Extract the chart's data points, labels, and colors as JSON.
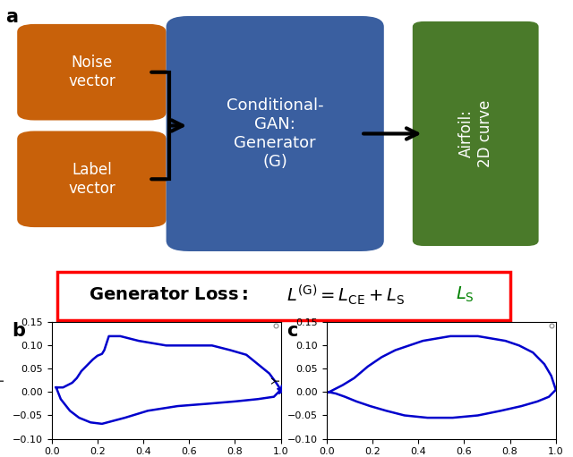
{
  "orange_color": "#C8610A",
  "blue_color": "#3A5FA0",
  "green_color": "#4A7A2A",
  "line_color": "#0000CC",
  "airfoil_b_x": [
    0.02,
    0.05,
    0.09,
    0.11,
    0.13,
    0.15,
    0.18,
    0.2,
    0.22,
    0.23,
    0.25,
    0.3,
    0.38,
    0.5,
    0.62,
    0.7,
    0.78,
    0.85,
    0.9,
    0.95,
    0.98,
    1.0,
    0.97,
    0.9,
    0.8,
    0.68,
    0.55,
    0.42,
    0.32,
    0.22,
    0.17,
    0.12,
    0.08,
    0.04,
    0.02
  ],
  "airfoil_b_y": [
    0.01,
    0.01,
    0.02,
    0.03,
    0.045,
    0.055,
    0.07,
    0.078,
    0.082,
    0.09,
    0.12,
    0.12,
    0.11,
    0.1,
    0.1,
    0.1,
    0.09,
    0.08,
    0.06,
    0.04,
    0.02,
    0.005,
    -0.01,
    -0.015,
    -0.02,
    -0.025,
    -0.03,
    -0.04,
    -0.055,
    -0.068,
    -0.065,
    -0.055,
    -0.04,
    -0.015,
    0.01
  ],
  "airfoil_c_x": [
    0.01,
    0.03,
    0.07,
    0.12,
    0.18,
    0.24,
    0.3,
    0.36,
    0.42,
    0.48,
    0.54,
    0.6,
    0.66,
    0.72,
    0.78,
    0.84,
    0.9,
    0.95,
    0.98,
    1.0,
    0.97,
    0.92,
    0.85,
    0.76,
    0.66,
    0.55,
    0.44,
    0.34,
    0.26,
    0.19,
    0.13,
    0.08,
    0.04,
    0.01
  ],
  "airfoil_c_y": [
    0.0,
    0.005,
    0.015,
    0.03,
    0.055,
    0.075,
    0.09,
    0.1,
    0.11,
    0.115,
    0.12,
    0.12,
    0.12,
    0.115,
    0.11,
    0.1,
    0.085,
    0.06,
    0.035,
    0.005,
    -0.01,
    -0.02,
    -0.03,
    -0.04,
    -0.05,
    -0.055,
    -0.055,
    -0.05,
    -0.04,
    -0.03,
    -0.02,
    -0.01,
    -0.003,
    0.0
  ],
  "ylim": [
    -0.1,
    0.15
  ],
  "xlim": [
    0.0,
    1.0
  ],
  "yticks": [
    -0.1,
    -0.05,
    0.0,
    0.05,
    0.1,
    0.15
  ],
  "xticks": [
    0.0,
    0.2,
    0.4,
    0.6,
    0.8,
    1.0
  ]
}
